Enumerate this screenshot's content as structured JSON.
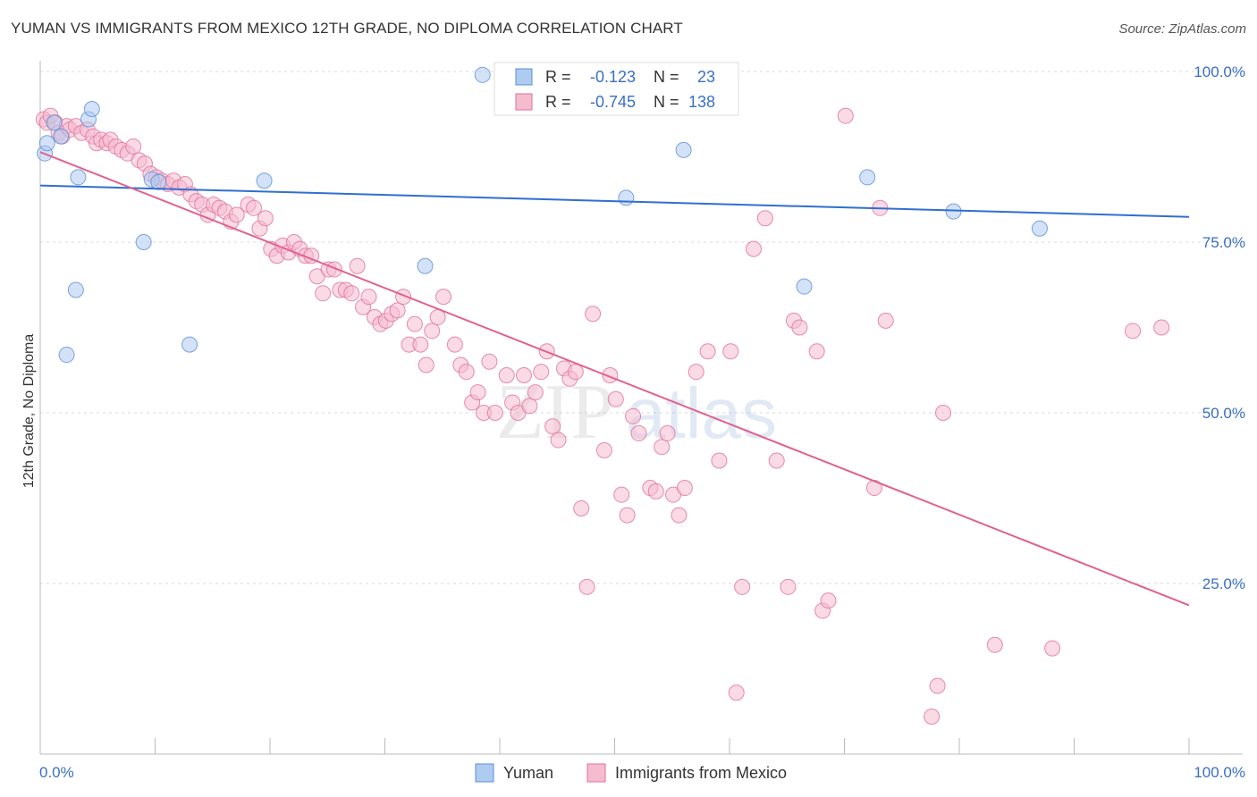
{
  "title": "YUMAN VS IMMIGRANTS FROM MEXICO 12TH GRADE, NO DIPLOMA CORRELATION CHART",
  "source": "Source: ZipAtlas.com",
  "watermark": {
    "zip": "ZIP",
    "atlas": "atlas"
  },
  "colors": {
    "yuman": "#5b8fd6",
    "yuman_fill": "#aecbf0",
    "mexico": "#e0709a",
    "mexico_fill": "#f5bcd0",
    "tick_label": "#3a6fc4"
  },
  "chart_data": {
    "type": "scatter",
    "title": "YUMAN VS IMMIGRANTS FROM MEXICO 12TH GRADE, NO DIPLOMA CORRELATION CHART",
    "xlabel": "",
    "ylabel": "12th Grade, No Diploma",
    "xlim": [
      0,
      100
    ],
    "ylim": [
      0,
      100
    ],
    "x_tick_labels": [
      "0.0%",
      "100.0%"
    ],
    "y_tick_labels": [
      "100.0%",
      "75.0%",
      "50.0%",
      "25.0%"
    ],
    "y_ticks": [
      100,
      75,
      50,
      25
    ],
    "grid": true,
    "legend_position": "bottom",
    "stats": [
      {
        "r_label": "R =",
        "r": "-0.123",
        "n_label": "N =",
        "n": "23"
      },
      {
        "r_label": "R =",
        "r": "-0.745",
        "n_label": "N =",
        "n": "138"
      }
    ],
    "series": [
      {
        "name": "Yuman",
        "trend": [
          [
            0,
            83.3
          ],
          [
            100,
            78.7
          ]
        ],
        "points": [
          [
            0.4,
            88
          ],
          [
            0.6,
            89.5
          ],
          [
            1.2,
            92.5
          ],
          [
            1.8,
            90.5
          ],
          [
            2.3,
            58.5
          ],
          [
            3.1,
            68
          ],
          [
            3.3,
            84.5
          ],
          [
            4.2,
            93
          ],
          [
            4.5,
            94.5
          ],
          [
            9.0,
            75
          ],
          [
            9.7,
            84.2
          ],
          [
            10.3,
            83.8
          ],
          [
            13.0,
            60
          ],
          [
            19.5,
            84
          ],
          [
            33.5,
            71.5
          ],
          [
            38.5,
            99.5
          ],
          [
            51.0,
            81.5
          ],
          [
            56.0,
            88.5
          ],
          [
            66.5,
            68.5
          ],
          [
            72.0,
            84.5
          ],
          [
            79.5,
            79.5
          ],
          [
            87.0,
            77
          ]
        ]
      },
      {
        "name": "Immigrants from Mexico",
        "trend": [
          [
            0,
            88.2
          ],
          [
            100,
            21.8
          ]
        ],
        "points": [
          [
            0.3,
            93
          ],
          [
            0.6,
            92.5
          ],
          [
            0.9,
            93.5
          ],
          [
            1.3,
            92.5
          ],
          [
            1.6,
            91
          ],
          [
            1.9,
            90.5
          ],
          [
            2.3,
            92
          ],
          [
            2.6,
            91.5
          ],
          [
            3.1,
            92
          ],
          [
            3.6,
            91
          ],
          [
            4.1,
            91.5
          ],
          [
            4.6,
            90.5
          ],
          [
            4.9,
            89.5
          ],
          [
            5.3,
            90
          ],
          [
            5.8,
            89.5
          ],
          [
            6.1,
            90
          ],
          [
            6.6,
            89
          ],
          [
            7.1,
            88.5
          ],
          [
            7.6,
            88
          ],
          [
            8.1,
            89
          ],
          [
            8.6,
            87
          ],
          [
            9.1,
            86.5
          ],
          [
            9.6,
            85
          ],
          [
            10.1,
            84.5
          ],
          [
            10.6,
            84
          ],
          [
            11.1,
            83.5
          ],
          [
            11.6,
            84
          ],
          [
            12.1,
            83
          ],
          [
            12.6,
            83.5
          ],
          [
            13.1,
            82
          ],
          [
            13.6,
            81
          ],
          [
            14.1,
            80.5
          ],
          [
            14.6,
            79
          ],
          [
            15.1,
            80.5
          ],
          [
            15.6,
            80
          ],
          [
            16.1,
            79.5
          ],
          [
            16.6,
            78
          ],
          [
            17.1,
            79
          ],
          [
            18.1,
            80.5
          ],
          [
            18.6,
            80
          ],
          [
            19.1,
            77
          ],
          [
            19.6,
            78.5
          ],
          [
            20.1,
            74
          ],
          [
            20.6,
            73
          ],
          [
            21.1,
            74.5
          ],
          [
            21.6,
            73.5
          ],
          [
            22.1,
            75
          ],
          [
            22.6,
            74
          ],
          [
            23.1,
            73
          ],
          [
            23.6,
            73
          ],
          [
            24.1,
            70
          ],
          [
            24.6,
            67.5
          ],
          [
            25.1,
            71
          ],
          [
            25.6,
            71
          ],
          [
            26.1,
            68
          ],
          [
            26.6,
            68
          ],
          [
            27.1,
            67.5
          ],
          [
            27.6,
            71.5
          ],
          [
            28.1,
            65.5
          ],
          [
            28.6,
            67
          ],
          [
            29.1,
            64
          ],
          [
            29.6,
            63
          ],
          [
            30.1,
            63.5
          ],
          [
            30.6,
            64.5
          ],
          [
            31.1,
            65
          ],
          [
            31.6,
            67
          ],
          [
            32.1,
            60
          ],
          [
            32.6,
            63
          ],
          [
            33.1,
            60
          ],
          [
            33.6,
            57
          ],
          [
            34.1,
            62
          ],
          [
            34.6,
            64
          ],
          [
            35.1,
            67
          ],
          [
            36.1,
            60
          ],
          [
            36.6,
            57
          ],
          [
            37.1,
            56
          ],
          [
            37.6,
            51.5
          ],
          [
            38.1,
            53
          ],
          [
            38.6,
            50
          ],
          [
            39.1,
            57.5
          ],
          [
            39.6,
            50
          ],
          [
            40.6,
            55.5
          ],
          [
            41.1,
            51.5
          ],
          [
            41.6,
            50
          ],
          [
            42.1,
            55.5
          ],
          [
            42.6,
            51
          ],
          [
            43.1,
            53
          ],
          [
            43.6,
            56
          ],
          [
            44.1,
            59
          ],
          [
            44.6,
            48
          ],
          [
            45.1,
            46
          ],
          [
            45.6,
            56.5
          ],
          [
            46.1,
            55
          ],
          [
            46.6,
            56
          ],
          [
            47.1,
            36
          ],
          [
            47.6,
            24.5
          ],
          [
            48.1,
            64.5
          ],
          [
            49.1,
            44.5
          ],
          [
            49.6,
            55.5
          ],
          [
            50.1,
            52
          ],
          [
            50.6,
            38
          ],
          [
            51.1,
            35
          ],
          [
            51.6,
            49.5
          ],
          [
            52.1,
            47
          ],
          [
            53.1,
            39
          ],
          [
            53.6,
            38.5
          ],
          [
            54.1,
            45
          ],
          [
            54.6,
            47
          ],
          [
            55.1,
            38
          ],
          [
            55.6,
            35
          ],
          [
            56.1,
            39
          ],
          [
            57.1,
            56
          ],
          [
            58.1,
            59
          ],
          [
            59.1,
            43
          ],
          [
            60.1,
            59
          ],
          [
            60.6,
            9
          ],
          [
            61.1,
            24.5
          ],
          [
            62.1,
            74
          ],
          [
            63.1,
            78.5
          ],
          [
            64.1,
            43
          ],
          [
            65.1,
            24.5
          ],
          [
            65.6,
            63.5
          ],
          [
            66.1,
            62.5
          ],
          [
            67.6,
            59
          ],
          [
            68.1,
            21
          ],
          [
            68.6,
            22.5
          ],
          [
            70.1,
            93.5
          ],
          [
            72.6,
            39
          ],
          [
            73.1,
            80
          ],
          [
            73.6,
            63.5
          ],
          [
            77.6,
            5.5
          ],
          [
            78.1,
            10
          ],
          [
            78.6,
            50
          ],
          [
            83.1,
            16
          ],
          [
            88.1,
            15.5
          ],
          [
            95.1,
            62
          ],
          [
            97.6,
            62.5
          ]
        ]
      }
    ]
  },
  "legend": {
    "items": [
      {
        "label": "Yuman"
      },
      {
        "label": "Immigrants from Mexico"
      }
    ]
  }
}
